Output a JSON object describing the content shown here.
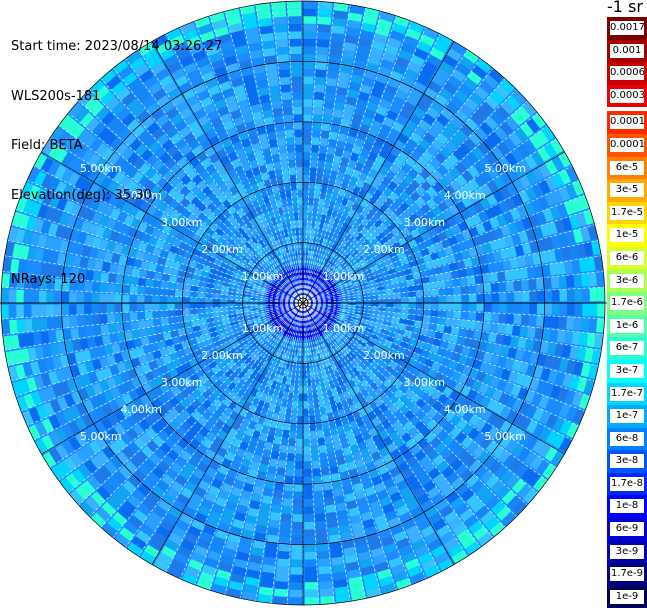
{
  "header": {
    "start_time": "Start time: 2023/08/14 03:26:27",
    "instrument": "WLS200s-181",
    "field": "Field: BETA",
    "elevation": "Elevation(deg): 35.30",
    "nrays": "NRays: 120"
  },
  "colorbar": {
    "units_title": "-1 sr",
    "upper": [
      {
        "label": "0.0017",
        "color": "#7a0000"
      },
      {
        "label": "0.001",
        "color": "#a30000"
      },
      {
        "label": "0.0006",
        "color": "#c80000"
      },
      {
        "label": "0.0003",
        "color": "#ee0000"
      }
    ],
    "lower": [
      {
        "label": "0.00017",
        "color": "#ff2a00"
      },
      {
        "label": "0.0001",
        "color": "#ff5500"
      },
      {
        "label": "6e-5",
        "color": "#ff7f00"
      },
      {
        "label": "3e-5",
        "color": "#ffaa00"
      },
      {
        "label": "1.7e-5",
        "color": "#ffd400"
      },
      {
        "label": "1e-5",
        "color": "#ffff00"
      },
      {
        "label": "6e-6",
        "color": "#d4ff2a"
      },
      {
        "label": "3e-6",
        "color": "#aaff55"
      },
      {
        "label": "1.7e-6",
        "color": "#7fff7f"
      },
      {
        "label": "1e-6",
        "color": "#55ffaa"
      },
      {
        "label": "6e-7",
        "color": "#2affd4"
      },
      {
        "label": "3e-7",
        "color": "#00ffff"
      },
      {
        "label": "1.7e-7",
        "color": "#00d4ff"
      },
      {
        "label": "1e-7",
        "color": "#00aaff"
      },
      {
        "label": "6e-8",
        "color": "#007fff"
      },
      {
        "label": "3e-8",
        "color": "#0055ff"
      },
      {
        "label": "1.7e-8",
        "color": "#002aff"
      },
      {
        "label": "1e-8",
        "color": "#0000ff"
      },
      {
        "label": "6e-9",
        "color": "#0000d4"
      },
      {
        "label": "3e-9",
        "color": "#0000aa"
      },
      {
        "label": "1.7e-9",
        "color": "#00007f"
      },
      {
        "label": "1e-9",
        "color": "#000055"
      }
    ]
  },
  "range_labels": [
    {
      "text": "1.00km",
      "km": 1
    },
    {
      "text": "2.00km",
      "km": 2
    },
    {
      "text": "3.00km",
      "km": 3
    },
    {
      "text": "4.00km",
      "km": 4
    },
    {
      "text": "5.00km",
      "km": 5
    }
  ],
  "colors": {
    "field_background": "#1a8cff",
    "grid": "#000000",
    "ray_separator": "#ffffff",
    "label_text": "#ffffff"
  },
  "scan": {
    "nrays": 120,
    "max_range_km": 5.0
  }
}
